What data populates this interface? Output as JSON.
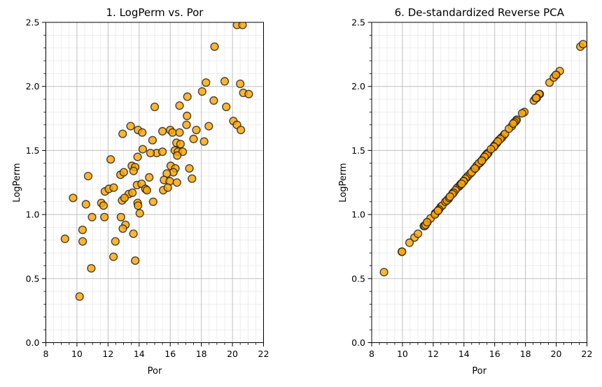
{
  "figure": {
    "background": "#ffffff",
    "marker_color": "#ffa500",
    "marker_edge_color": "#1a1a1a",
    "grid_major_color": "#bfbfbf",
    "grid_minor_color": "#e6e6e6",
    "spine_color": "#000000"
  },
  "chart_data": [
    {
      "type": "scatter",
      "title": "1. LogPerm vs. Por",
      "xlabel": "Por",
      "ylabel": "LogPerm",
      "xlim": [
        8,
        22
      ],
      "ylim": [
        0.0,
        2.5
      ],
      "xticks": [
        8,
        10,
        12,
        14,
        16,
        18,
        20,
        22
      ],
      "xtick_labels": [
        "8",
        "10",
        "12",
        "14",
        "16",
        "18",
        "20",
        "22"
      ],
      "yticks": [
        0.0,
        0.5,
        1.0,
        1.5,
        2.0,
        2.5
      ],
      "ytick_labels": [
        "0.0",
        "0.5",
        "1.0",
        "1.5",
        "2.0",
        "2.5"
      ],
      "minor_x_step": 0.5,
      "minor_y_step": 0.1,
      "grid": true,
      "legend": null,
      "marker": {
        "fill": "#ffa500",
        "edge": "#1a1a1a",
        "opacity": 0.8,
        "radius": 5.4
      },
      "points": [
        [
          20.3,
          2.48
        ],
        [
          20.65,
          2.48
        ],
        [
          18.85,
          2.31
        ],
        [
          18.3,
          2.03
        ],
        [
          19.5,
          2.04
        ],
        [
          20.5,
          2.02
        ],
        [
          18.05,
          1.96
        ],
        [
          17.1,
          1.92
        ],
        [
          20.7,
          1.95
        ],
        [
          21.05,
          1.94
        ],
        [
          18.8,
          1.89
        ],
        [
          16.6,
          1.85
        ],
        [
          15.0,
          1.84
        ],
        [
          19.6,
          1.84
        ],
        [
          17.08,
          1.77
        ],
        [
          20.06,
          1.73
        ],
        [
          20.29,
          1.7
        ],
        [
          20.54,
          1.66
        ],
        [
          17.05,
          1.7
        ],
        [
          17.68,
          1.66
        ],
        [
          18.48,
          1.69
        ],
        [
          15.5,
          1.65
        ],
        [
          16.0,
          1.66
        ],
        [
          16.15,
          1.64
        ],
        [
          16.6,
          1.64
        ],
        [
          13.45,
          1.69
        ],
        [
          12.94,
          1.63
        ],
        [
          13.93,
          1.66
        ],
        [
          14.2,
          1.64
        ],
        [
          14.86,
          1.58
        ],
        [
          17.5,
          1.59
        ],
        [
          18.18,
          1.57
        ],
        [
          16.4,
          1.56
        ],
        [
          16.66,
          1.55
        ],
        [
          16.3,
          1.5
        ],
        [
          16.5,
          1.49
        ],
        [
          16.8,
          1.49
        ],
        [
          15.13,
          1.48
        ],
        [
          15.5,
          1.49
        ],
        [
          16.45,
          1.46
        ],
        [
          14.23,
          1.51
        ],
        [
          14.73,
          1.48
        ],
        [
          13.9,
          1.45
        ],
        [
          12.17,
          1.43
        ],
        [
          13.53,
          1.38
        ],
        [
          13.74,
          1.37
        ],
        [
          13.64,
          1.34
        ],
        [
          12.8,
          1.31
        ],
        [
          13.01,
          1.33
        ],
        [
          10.72,
          1.3
        ],
        [
          14.65,
          1.29
        ],
        [
          16.03,
          1.38
        ],
        [
          16.33,
          1.36
        ],
        [
          16.2,
          1.33
        ],
        [
          17.23,
          1.36
        ],
        [
          15.78,
          1.32
        ],
        [
          15.6,
          1.27
        ],
        [
          15.97,
          1.26
        ],
        [
          17.4,
          1.28
        ],
        [
          16.43,
          1.25
        ],
        [
          15.55,
          1.19
        ],
        [
          15.84,
          1.21
        ],
        [
          11.8,
          1.18
        ],
        [
          12.05,
          1.2
        ],
        [
          12.36,
          1.21
        ],
        [
          13.86,
          1.23
        ],
        [
          14.16,
          1.24
        ],
        [
          14.4,
          1.2
        ],
        [
          14.5,
          1.19
        ],
        [
          13.33,
          1.16
        ],
        [
          13.57,
          1.17
        ],
        [
          12.9,
          1.11
        ],
        [
          13.06,
          1.13
        ],
        [
          9.75,
          1.13
        ],
        [
          10.58,
          1.08
        ],
        [
          11.57,
          1.09
        ],
        [
          11.71,
          1.07
        ],
        [
          13.9,
          1.09
        ],
        [
          13.93,
          1.07
        ],
        [
          14.9,
          1.1
        ],
        [
          14.04,
          1.01
        ],
        [
          10.97,
          0.98
        ],
        [
          11.77,
          0.98
        ],
        [
          12.83,
          0.98
        ],
        [
          13.12,
          0.92
        ],
        [
          12.95,
          0.89
        ],
        [
          10.36,
          0.88
        ],
        [
          13.63,
          0.85
        ],
        [
          9.23,
          0.81
        ],
        [
          10.37,
          0.79
        ],
        [
          12.47,
          0.79
        ],
        [
          12.35,
          0.67
        ],
        [
          13.75,
          0.64
        ],
        [
          10.92,
          0.58
        ],
        [
          10.17,
          0.36
        ]
      ]
    },
    {
      "type": "scatter",
      "title": "6. De-standardized Reverse PCA",
      "xlabel": "Por",
      "ylabel": "LogPerm",
      "xlim": [
        8,
        22
      ],
      "ylim": [
        0.0,
        2.5
      ],
      "xticks": [
        8,
        10,
        12,
        14,
        16,
        18,
        20,
        22
      ],
      "xtick_labels": [
        "8",
        "10",
        "12",
        "14",
        "16",
        "18",
        "20",
        "22"
      ],
      "yticks": [
        0.0,
        0.5,
        1.0,
        1.5,
        2.0,
        2.5
      ],
      "ytick_labels": [
        "0.0",
        "0.5",
        "1.0",
        "1.5",
        "2.0",
        "2.5"
      ],
      "minor_x_step": 0.5,
      "minor_y_step": 0.1,
      "grid": true,
      "legend": null,
      "marker": {
        "fill": "#ffa500",
        "edge": "#1a1a1a",
        "opacity": 0.8,
        "radius": 5.4
      },
      "points": [
        [
          21.57,
          2.31
        ],
        [
          21.75,
          2.33
        ],
        [
          20.23,
          2.12
        ],
        [
          18.93,
          1.94
        ],
        [
          19.57,
          2.03
        ],
        [
          20.0,
          2.09
        ],
        [
          18.55,
          1.89
        ],
        [
          17.93,
          1.8
        ],
        [
          19.84,
          2.07
        ],
        [
          19.98,
          2.09
        ],
        [
          18.67,
          1.91
        ],
        [
          17.43,
          1.74
        ],
        [
          16.59,
          1.62
        ],
        [
          18.89,
          1.94
        ],
        [
          17.38,
          1.73
        ],
        [
          18.72,
          1.91
        ],
        [
          18.73,
          1.91
        ],
        [
          18.69,
          1.91
        ],
        [
          17.11,
          1.69
        ],
        [
          17.28,
          1.72
        ],
        [
          17.79,
          1.79
        ],
        [
          16.15,
          1.56
        ],
        [
          16.44,
          1.6
        ],
        [
          16.46,
          1.6
        ],
        [
          16.67,
          1.63
        ],
        [
          15.27,
          1.44
        ],
        [
          14.8,
          1.37
        ],
        [
          15.4,
          1.46
        ],
        [
          15.47,
          1.47
        ],
        [
          15.58,
          1.48
        ],
        [
          16.93,
          1.67
        ],
        [
          17.2,
          1.71
        ],
        [
          16.27,
          1.58
        ],
        [
          16.37,
          1.59
        ],
        [
          16.01,
          1.54
        ],
        [
          16.07,
          1.55
        ],
        [
          16.2,
          1.57
        ],
        [
          15.35,
          1.45
        ],
        [
          15.55,
          1.48
        ],
        [
          15.94,
          1.53
        ],
        [
          15.01,
          1.4
        ],
        [
          15.15,
          1.42
        ],
        [
          14.63,
          1.35
        ],
        [
          13.69,
          1.22
        ],
        [
          14.19,
          1.29
        ],
        [
          14.25,
          1.3
        ],
        [
          14.1,
          1.28
        ],
        [
          13.57,
          1.21
        ],
        [
          13.74,
          1.23
        ],
        [
          12.49,
          1.06
        ],
        [
          14.42,
          1.32
        ],
        [
          15.44,
          1.46
        ],
        [
          15.51,
          1.47
        ],
        [
          15.34,
          1.45
        ],
        [
          15.96,
          1.53
        ],
        [
          15.09,
          1.41
        ],
        [
          14.82,
          1.38
        ],
        [
          14.97,
          1.4
        ],
        [
          15.76,
          1.51
        ],
        [
          15.16,
          1.42
        ],
        [
          14.5,
          1.33
        ],
        [
          14.72,
          1.36
        ],
        [
          12.59,
          1.07
        ],
        [
          12.79,
          1.1
        ],
        [
          12.98,
          1.12
        ],
        [
          13.81,
          1.24
        ],
        [
          13.99,
          1.26
        ],
        [
          13.97,
          1.26
        ],
        [
          13.98,
          1.26
        ],
        [
          13.29,
          1.17
        ],
        [
          13.44,
          1.19
        ],
        [
          12.89,
          1.11
        ],
        [
          13.04,
          1.13
        ],
        [
          11.39,
          0.91
        ],
        [
          11.62,
          0.94
        ],
        [
          12.15,
          1.01
        ],
        [
          12.13,
          1.01
        ],
        [
          13.32,
          1.17
        ],
        [
          13.24,
          1.16
        ],
        [
          13.85,
          1.24
        ],
        [
          13.09,
          1.14
        ],
        [
          11.45,
          0.91
        ],
        [
          11.83,
          0.97
        ],
        [
          12.38,
          1.04
        ],
        [
          12.31,
          1.03
        ],
        [
          12.11,
          1.0
        ],
        [
          10.78,
          0.82
        ],
        [
          12.31,
          1.03
        ],
        [
          9.96,
          0.71
        ],
        [
          10.46,
          0.78
        ],
        [
          11.51,
          0.92
        ],
        [
          11.01,
          0.85
        ],
        [
          11.6,
          0.94
        ],
        [
          9.97,
          0.71
        ],
        [
          8.8,
          0.55
        ]
      ]
    }
  ]
}
